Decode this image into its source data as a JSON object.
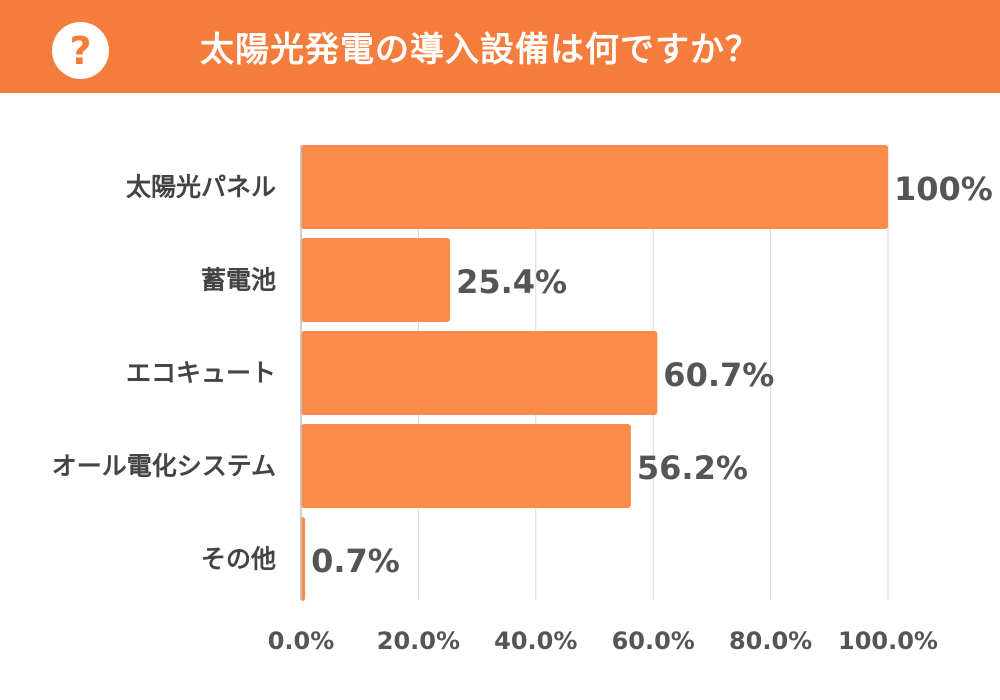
{
  "header": {
    "badge_icon": "question-mark-icon",
    "badge_text": "?",
    "title": "太陽光発電の導入設備は何ですか？",
    "bg_color": "#f47c3c"
  },
  "chart_data": {
    "type": "bar",
    "orientation": "horizontal",
    "title": "太陽光発電の導入設備は何ですか？",
    "categories": [
      "太陽光パネル",
      "蓄電池",
      "エコキュート",
      "オール電化システム",
      "その他"
    ],
    "values": [
      100,
      25.4,
      60.7,
      56.2,
      0.7
    ],
    "value_labels": [
      "100%",
      "25.4%",
      "60.7%",
      "56.2%",
      "0.7%"
    ],
    "xlim": [
      0,
      100
    ],
    "x_ticks": [
      0,
      20,
      40,
      60,
      80,
      100
    ],
    "x_tick_labels": [
      "0.0%",
      "20.0%",
      "40.0%",
      "60.0%",
      "80.0%",
      "100.0%"
    ],
    "xlabel": "",
    "ylabel": "",
    "grid": "vertical",
    "legend": "none",
    "bar_color": "#fb8c4a"
  }
}
